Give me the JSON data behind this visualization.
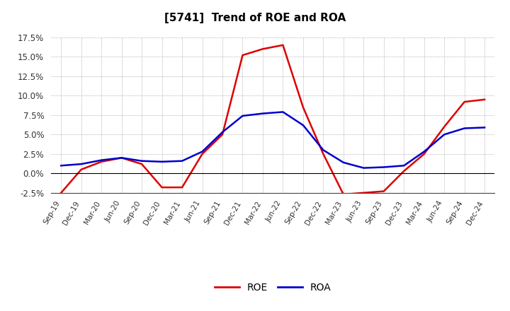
{
  "title": "[5741]  Trend of ROE and ROA",
  "x_labels": [
    "Sep-19",
    "Dec-19",
    "Mar-20",
    "Jun-20",
    "Sep-20",
    "Dec-20",
    "Mar-21",
    "Jun-21",
    "Sep-21",
    "Dec-21",
    "Mar-22",
    "Jun-22",
    "Sep-22",
    "Dec-22",
    "Mar-23",
    "Jun-23",
    "Sep-23",
    "Dec-23",
    "Mar-24",
    "Jun-24",
    "Sep-24",
    "Dec-24"
  ],
  "ROE": [
    -2.5,
    0.5,
    1.5,
    2.0,
    1.2,
    -1.8,
    -1.8,
    2.5,
    5.0,
    15.2,
    16.0,
    16.5,
    8.5,
    2.5,
    -2.7,
    -2.5,
    -2.3,
    0.3,
    2.5,
    6.0,
    9.2,
    9.5
  ],
  "ROA": [
    1.0,
    1.2,
    1.7,
    2.0,
    1.6,
    1.5,
    1.6,
    2.8,
    5.3,
    7.4,
    7.7,
    7.9,
    6.2,
    3.0,
    1.4,
    0.7,
    0.8,
    1.0,
    2.8,
    5.0,
    5.8,
    5.9
  ],
  "roe_color": "#dd0000",
  "roa_color": "#0000cc",
  "background_color": "#ffffff",
  "grid_color": "#999999",
  "ylim": [
    -2.5,
    17.5
  ],
  "yticks": [
    -2.5,
    0.0,
    2.5,
    5.0,
    7.5,
    10.0,
    12.5,
    15.0,
    17.5
  ],
  "legend_labels": [
    "ROE",
    "ROA"
  ],
  "line_width": 1.8
}
